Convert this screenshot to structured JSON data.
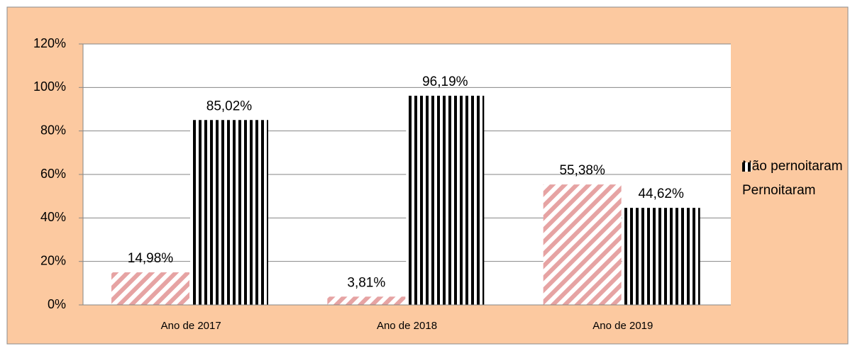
{
  "chart_data": {
    "type": "bar",
    "categories": [
      "Ano de 2017",
      "Ano de 2018",
      "Ano de 2019"
    ],
    "series": [
      {
        "name": "Não pernoitaram",
        "color": "#e6a3a3",
        "values": [
          14.98,
          3.81,
          55.38
        ],
        "value_labels": [
          "14,98%",
          "3,81%",
          "55,38%"
        ]
      },
      {
        "name": "Pernoitaram",
        "color": "#000000",
        "values": [
          85.02,
          96.19,
          44.62
        ],
        "value_labels": [
          "85,02%",
          "96,19%",
          "44,62%"
        ]
      }
    ],
    "ylim": [
      0,
      120
    ],
    "yticks": [
      {
        "value": 0,
        "label": "0%"
      },
      {
        "value": 20,
        "label": "20%"
      },
      {
        "value": 40,
        "label": "40%"
      },
      {
        "value": 60,
        "label": "60%"
      },
      {
        "value": 80,
        "label": "80%"
      },
      {
        "value": 100,
        "label": "100%"
      },
      {
        "value": 120,
        "label": "120%"
      }
    ],
    "grid": true,
    "legend": "right"
  }
}
